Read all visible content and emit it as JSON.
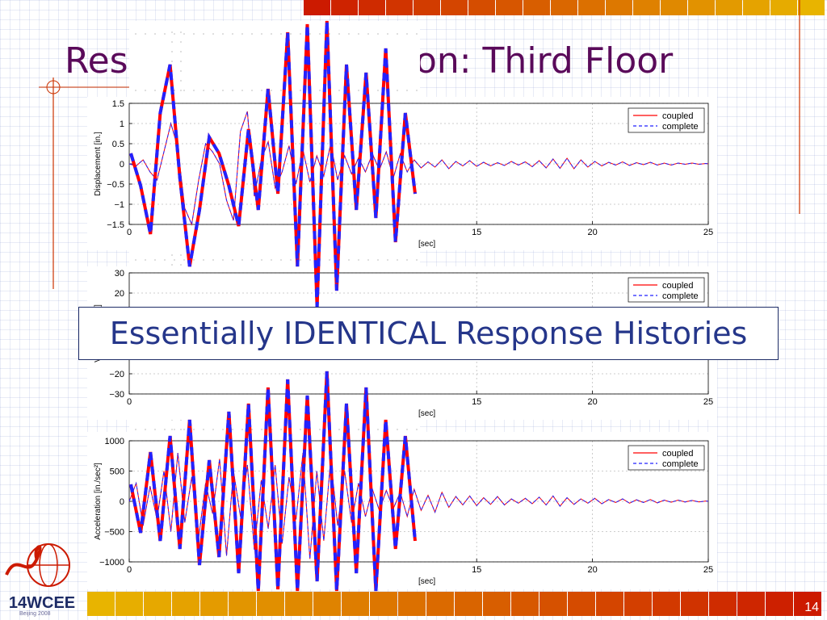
{
  "slide": {
    "title": "Response Comparison: Third Floor",
    "callout": "Essentially IDENTICAL Response Histories",
    "page_number": "14",
    "logo": {
      "text": "14WCEE",
      "subtext": "Beijing 2008"
    }
  },
  "colors": {
    "coupled": "#ff0000",
    "complete": "#2222ff",
    "title": "#5a0a5a",
    "callout_text": "#25368a",
    "strip_light": "#e8b400",
    "strip_dark": "#cc1a00"
  },
  "chart_data": [
    {
      "type": "line",
      "ylabel": "Displacement [in.]",
      "xlabel": "[sec]",
      "x_ticks": [
        "0",
        "15",
        "20",
        "25"
      ],
      "y_ticks": [
        "1.5",
        "1",
        "0.5",
        "0",
        "−0.5",
        "−1",
        "−1.5"
      ],
      "xlim": [
        0,
        25
      ],
      "ylim": [
        -1.5,
        1.5
      ],
      "legend_position": "top-right",
      "series": [
        {
          "name": "coupled",
          "style": "solid"
        },
        {
          "name": "complete",
          "style": "dashed"
        }
      ],
      "x": [
        0,
        0.3,
        0.6,
        0.9,
        1.2,
        1.5,
        1.8,
        2.1,
        2.4,
        2.7,
        3.0,
        3.3,
        3.6,
        3.9,
        4.2,
        4.5,
        4.8,
        5.1,
        5.4,
        5.7,
        6.0,
        6.3,
        6.6,
        6.9,
        7.2,
        7.5,
        7.8,
        8.1,
        8.4,
        8.7,
        9.0,
        9.3,
        9.6,
        9.9,
        10.2,
        10.5,
        10.8,
        11.1,
        11.4,
        11.7,
        12.0,
        12.3,
        12.6,
        12.9,
        13.2,
        13.5,
        13.8,
        14.1,
        14.4,
        14.7,
        15.0,
        15.3,
        15.6,
        15.9,
        16.2,
        16.5,
        16.8,
        17.1,
        17.4,
        17.7,
        18.0,
        18.3,
        18.6,
        18.9,
        19.2,
        19.5,
        19.8,
        20.1,
        20.4,
        20.7,
        21.0,
        21.3,
        21.6,
        21.9,
        22.2,
        22.5,
        22.8,
        23.1,
        23.4,
        23.7,
        24.0,
        24.3,
        24.6,
        24.9,
        25.0
      ],
      "values": [
        0,
        -0.05,
        0.1,
        -0.2,
        -0.4,
        0.3,
        1.0,
        0.4,
        -1.1,
        -1.5,
        -0.4,
        0.5,
        0.3,
        0.0,
        -0.9,
        -1.4,
        0.8,
        1.3,
        -0.8,
        0.1,
        0.55,
        -0.6,
        -0.2,
        0.45,
        -0.5,
        0.35,
        -0.45,
        0.2,
        -0.3,
        0.5,
        -0.4,
        0.2,
        -0.25,
        0.15,
        -0.2,
        0.25,
        -0.15,
        0.3,
        -0.35,
        0.25,
        -0.2,
        0.1,
        -0.1,
        0.05,
        -0.08,
        0.1,
        -0.12,
        0.06,
        -0.05,
        0.08,
        -0.06,
        0.04,
        -0.05,
        0.03,
        -0.04,
        0.06,
        -0.03,
        0.05,
        -0.07,
        0.08,
        -0.1,
        0.12,
        -0.11,
        0.14,
        -0.12,
        0.1,
        -0.08,
        0.06,
        -0.05,
        0.04,
        -0.03,
        0.05,
        -0.04,
        0.03,
        -0.02,
        0.04,
        -0.03,
        0.02,
        -0.03,
        0.02,
        -0.01,
        0.02,
        -0.01,
        0.01,
        0.0
      ]
    },
    {
      "type": "line",
      "ylabel": "Velocity [in./sec]",
      "xlabel": "[sec]",
      "x_ticks": [
        "0",
        "15",
        "20",
        "25"
      ],
      "y_ticks": [
        "30",
        "20",
        "−20",
        "−30"
      ],
      "xlim": [
        0,
        25
      ],
      "ylim": [
        -30,
        30
      ],
      "legend_position": "top-right",
      "series": [
        {
          "name": "coupled",
          "style": "solid"
        },
        {
          "name": "complete",
          "style": "dashed"
        }
      ]
    },
    {
      "type": "line",
      "ylabel": "Acceleration [in./sec²]",
      "xlabel": "[sec]",
      "x_ticks": [
        "0",
        "15",
        "20",
        "25"
      ],
      "y_ticks": [
        "1000",
        "500",
        "0",
        "−500",
        "−1000"
      ],
      "xlim": [
        0,
        25
      ],
      "ylim": [
        -1000,
        1000
      ],
      "legend_position": "top-right",
      "series": [
        {
          "name": "coupled",
          "style": "solid"
        },
        {
          "name": "complete",
          "style": "dashed"
        }
      ],
      "x": [
        0,
        0.3,
        0.6,
        0.9,
        1.2,
        1.5,
        1.8,
        2.1,
        2.4,
        2.7,
        3.0,
        3.3,
        3.6,
        3.9,
        4.2,
        4.5,
        4.8,
        5.1,
        5.4,
        5.7,
        6.0,
        6.3,
        6.6,
        6.9,
        7.2,
        7.5,
        7.8,
        8.1,
        8.4,
        8.7,
        9.0,
        9.3,
        9.6,
        9.9,
        10.2,
        10.5,
        10.8,
        11.1,
        11.4,
        11.7,
        12.0,
        12.3,
        12.6,
        12.9,
        13.2,
        13.5,
        13.8,
        14.1,
        14.4,
        14.7,
        15.0,
        15.3,
        15.6,
        15.9,
        16.2,
        16.5,
        16.8,
        17.1,
        17.4,
        17.7,
        18.0,
        18.3,
        18.6,
        18.9,
        19.2,
        19.5,
        19.8,
        20.1,
        20.4,
        20.7,
        21.0,
        21.3,
        21.6,
        21.9,
        22.2,
        22.5,
        22.8,
        23.1,
        23.4,
        23.7,
        24.0,
        24.3,
        24.6,
        24.9,
        25.0
      ],
      "values": [
        0,
        300,
        -400,
        250,
        -300,
        500,
        -500,
        800,
        -350,
        400,
        -600,
        300,
        -200,
        700,
        -900,
        500,
        -250,
        600,
        -800,
        350,
        -450,
        600,
        -700,
        400,
        -300,
        800,
        -950,
        500,
        -650,
        700,
        -400,
        500,
        -350,
        300,
        -250,
        200,
        -150,
        180,
        -120,
        150,
        -250,
        200,
        -150,
        100,
        -180,
        150,
        -100,
        80,
        -60,
        90,
        -70,
        60,
        -50,
        80,
        -60,
        40,
        -30,
        50,
        -40,
        70,
        -60,
        90,
        -80,
        60,
        -50,
        40,
        -30,
        50,
        -40,
        30,
        -20,
        40,
        -30,
        25,
        -20,
        30,
        -25,
        20,
        -15,
        20,
        -10,
        15,
        -10,
        5,
        0
      ]
    }
  ]
}
